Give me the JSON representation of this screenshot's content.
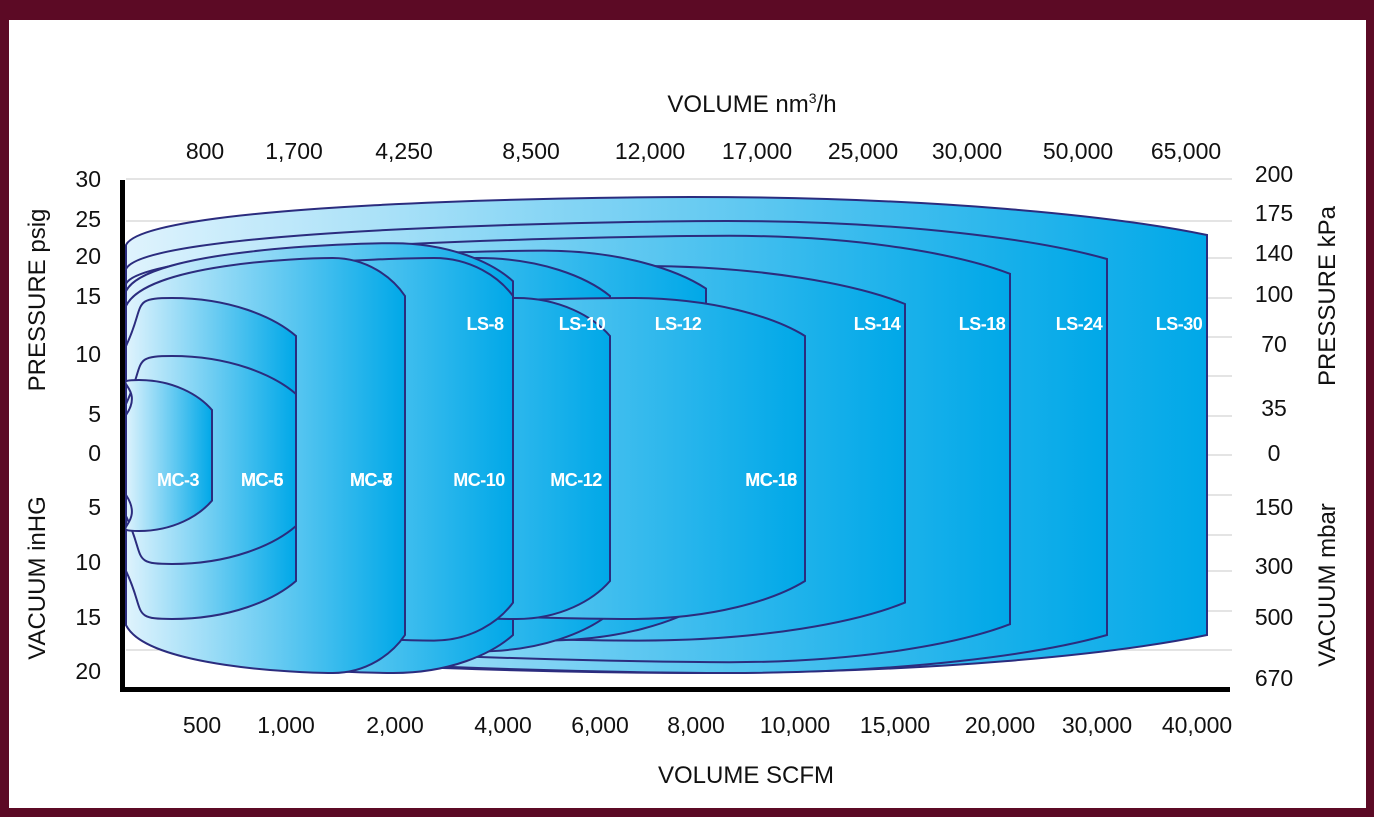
{
  "chart_data": {
    "type": "area",
    "title": "",
    "colors": {
      "frame": "#5c0a25",
      "band_outline": "#2b2c7e",
      "band_fill_light": "#dff3fd",
      "band_fill_dark": "#00a8e8",
      "label": "#ffffff",
      "grid": "#c8c8c8"
    },
    "axes": {
      "x_bottom": {
        "label": "VOLUME SCFM",
        "ticks": [
          "500",
          "1,000",
          "2,000",
          "4,000",
          "6,000",
          "8,000",
          "10,000",
          "15,000",
          "20,000",
          "30,000",
          "40,000"
        ]
      },
      "x_top": {
        "label_main": "VOLUME nm",
        "label_sup": "3",
        "label_tail": "/h",
        "ticks": [
          "800",
          "1,700",
          "4,250",
          "8,500",
          "12,000",
          "17,000",
          "25,000",
          "30,000",
          "50,000",
          "65,000"
        ]
      },
      "y_left_pressure": {
        "label": "PRESSURE psig",
        "ticks": [
          "30",
          "25",
          "20",
          "15",
          "10",
          "5",
          "0"
        ]
      },
      "y_left_vacuum": {
        "label": "VACUUM inHG",
        "ticks": [
          "5",
          "10",
          "15",
          "20"
        ]
      },
      "y_right_pressure": {
        "label": "PRESSURE kPa",
        "ticks": [
          "200",
          "175",
          "140",
          "100",
          "70",
          "35",
          "0"
        ]
      },
      "y_right_vacuum": {
        "label": "VACUUM mbar",
        "ticks": [
          "150",
          "300",
          "500",
          "670"
        ]
      }
    },
    "series": [
      {
        "name": "LS-30",
        "scfm_max": 40000,
        "psig_max": 28,
        "inhg_max": 21
      },
      {
        "name": "LS-24",
        "scfm_max": 30000,
        "psig_max": 25,
        "inhg_max": 20
      },
      {
        "name": "LS-18",
        "scfm_max": 20000,
        "psig_max": 23,
        "inhg_max": 19
      },
      {
        "name": "LS-14",
        "scfm_max": 15000,
        "psig_max": 19,
        "inhg_max": 17
      },
      {
        "name": "LS-12",
        "scfm_max": 8000,
        "psig_max": 21,
        "inhg_max": 17
      },
      {
        "name": "LS-10",
        "scfm_max": 6000,
        "psig_max": 20,
        "inhg_max": 18
      },
      {
        "name": "LS-8",
        "scfm_max": 4000,
        "psig_max": 22,
        "inhg_max": 20
      },
      {
        "name": "MC-18",
        "scfm_max": 10000,
        "psig_max": 10,
        "inhg_max": 10
      },
      {
        "name": "MC-16",
        "scfm_max": 10000,
        "psig_max": 15,
        "inhg_max": 15
      },
      {
        "name": "MC-12",
        "scfm_max": 6000,
        "psig_max": 15,
        "inhg_max": 15
      },
      {
        "name": "MC-10",
        "scfm_max": 4000,
        "psig_max": 20,
        "inhg_max": 17
      },
      {
        "name": "MC-8",
        "scfm_max": 2000,
        "psig_max": 10,
        "inhg_max": 10
      },
      {
        "name": "MC-7",
        "scfm_max": 2000,
        "psig_max": 20,
        "inhg_max": 20
      },
      {
        "name": "MC-6",
        "scfm_max": 1000,
        "psig_max": 15,
        "inhg_max": 15
      },
      {
        "name": "MC-5",
        "scfm_max": 1000,
        "psig_max": 10,
        "inhg_max": 10
      },
      {
        "name": "MC-3",
        "scfm_max": 500,
        "psig_max": 8,
        "inhg_max": 7
      }
    ]
  }
}
